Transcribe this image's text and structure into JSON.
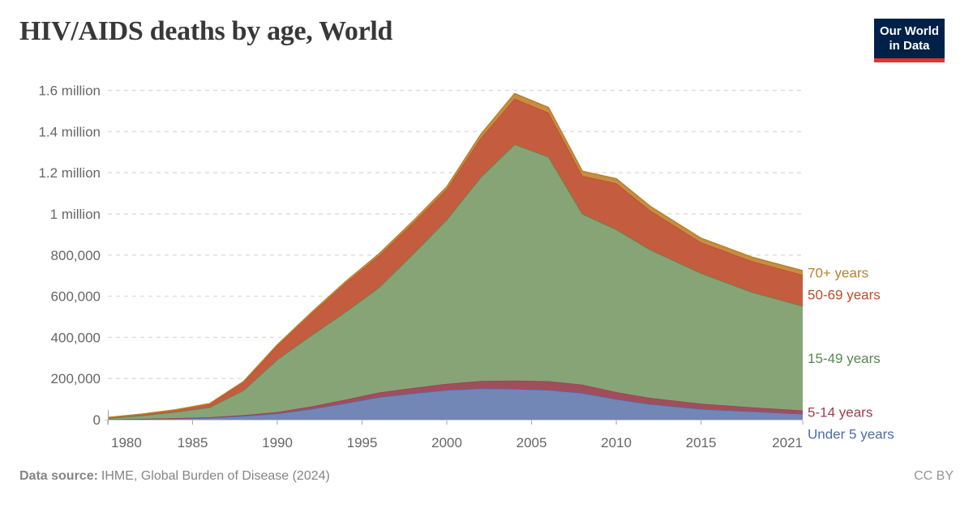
{
  "header": {
    "title": "HIV/AIDS deaths by age, World"
  },
  "logo": {
    "line1": "Our World",
    "line2": "in Data"
  },
  "footer": {
    "source_label": "Data source:",
    "source_text": "IHME, Global Burden of Disease (2024)",
    "license": "CC BY"
  },
  "colors": {
    "title_text": "#383838",
    "axis_text": "#666666",
    "grid": "#dddddd",
    "axis_line": "#cccccc",
    "tick": "#a3a3a3",
    "footer_text": "#858585",
    "logo_bg": "#002147",
    "logo_bar": "#e0342c"
  },
  "chart_data": {
    "type": "area",
    "stacked": true,
    "title": "HIV/AIDS deaths by age, World",
    "xlabel": "",
    "ylabel": "",
    "xlim": [
      1980,
      2021
    ],
    "ylim": [
      0,
      1600000
    ],
    "grid": "horizontal-dashed",
    "legend_position": "right-of-plot",
    "x": [
      1980,
      1982,
      1984,
      1986,
      1988,
      1990,
      1992,
      1994,
      1996,
      1998,
      2000,
      2002,
      2004,
      2006,
      2008,
      2010,
      2012,
      2015,
      2018,
      2021
    ],
    "series": [
      {
        "name": "Under 5 years",
        "fill": "#7287b5",
        "stroke": "#4d6bad",
        "values": [
          1000,
          3000,
          6000,
          10000,
          18000,
          30000,
          52000,
          80000,
          110000,
          128000,
          144000,
          152000,
          150000,
          145000,
          130000,
          100000,
          76000,
          52000,
          40000,
          28000
        ]
      },
      {
        "name": "5-14 years",
        "fill": "#a14e5c",
        "stroke": "#9c3e53",
        "values": [
          500,
          1000,
          1500,
          2000,
          4000,
          7000,
          12000,
          17000,
          22000,
          26000,
          30000,
          36000,
          40000,
          42000,
          40000,
          34000,
          30000,
          26000,
          20000,
          17000
        ]
      },
      {
        "name": "15-49 years",
        "fill": "#87a477",
        "stroke": "#578a4c",
        "values": [
          6000,
          16000,
          30000,
          48000,
          120000,
          255000,
          345000,
          425000,
          510000,
          650000,
          798000,
          990000,
          1148000,
          1090000,
          830000,
          790000,
          720000,
          634000,
          560000,
          507000
        ]
      },
      {
        "name": "50-69 years",
        "fill": "#c45c40",
        "stroke": "#c14a27",
        "values": [
          2500,
          6000,
          10000,
          16000,
          40000,
          67000,
          105000,
          140000,
          155000,
          150000,
          148000,
          190000,
          222000,
          215000,
          185000,
          225000,
          190000,
          150000,
          150000,
          152000
        ]
      },
      {
        "name": "70+ years",
        "fill": "#c68e43",
        "stroke": "#b8802b",
        "values": [
          500,
          1000,
          1000,
          2000,
          3000,
          5000,
          6000,
          7000,
          9000,
          10000,
          12000,
          18000,
          25000,
          25000,
          22000,
          22000,
          21000,
          20000,
          20000,
          20000
        ]
      }
    ],
    "x_ticks": [
      1980,
      1985,
      1990,
      1995,
      2000,
      2005,
      2010,
      2015,
      2021
    ],
    "y_ticks": [
      {
        "value": 0,
        "label": "0"
      },
      {
        "value": 200000,
        "label": "200,000"
      },
      {
        "value": 400000,
        "label": "400,000"
      },
      {
        "value": 600000,
        "label": "600,000"
      },
      {
        "value": 800000,
        "label": "800,000"
      },
      {
        "value": 1000000,
        "label": "1 million"
      },
      {
        "value": 1200000,
        "label": "1.2 million"
      },
      {
        "value": 1400000,
        "label": "1.4 million"
      },
      {
        "value": 1600000,
        "label": "1.6 million"
      }
    ]
  }
}
